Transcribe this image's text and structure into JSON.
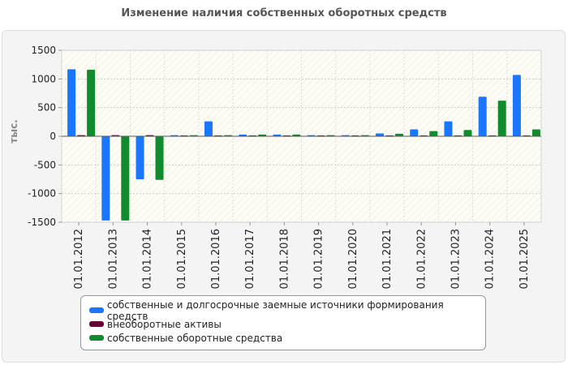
{
  "chart_data": {
    "type": "bar",
    "title": "Изменение наличия собственных оборотных средств",
    "ylabel": "тыс.",
    "xlabel": "",
    "ylim": [
      -1500,
      1500
    ],
    "yticks": [
      1500,
      1000,
      500,
      0,
      -500,
      -1000,
      -1500
    ],
    "categories": [
      "01.01.2012",
      "01.01.2013",
      "01.01.2014",
      "01.01.2015",
      "01.01.2016",
      "01.01.2017",
      "01.01.2018",
      "01.01.2019",
      "01.01.2020",
      "01.01.2021",
      "01.01.2022",
      "01.01.2023",
      "01.01.2024",
      "01.01.2025"
    ],
    "series": [
      {
        "name": "собственные и долгосрочные заемные источники формирования средств",
        "color": "#1a75ff",
        "values": [
          1170,
          -1470,
          -750,
          20,
          260,
          30,
          30,
          20,
          20,
          50,
          120,
          260,
          690,
          1070
        ]
      },
      {
        "name": "внеоборотные активы",
        "color": "#660033",
        "values": [
          20,
          20,
          20,
          15,
          15,
          15,
          15,
          15,
          15,
          15,
          15,
          15,
          15,
          15
        ]
      },
      {
        "name": "собственные оборотные средства",
        "color": "#128a2e",
        "values": [
          1160,
          -1470,
          -760,
          20,
          20,
          30,
          30,
          20,
          20,
          45,
          90,
          110,
          620,
          120
        ]
      }
    ],
    "legend_position": "bottom"
  }
}
